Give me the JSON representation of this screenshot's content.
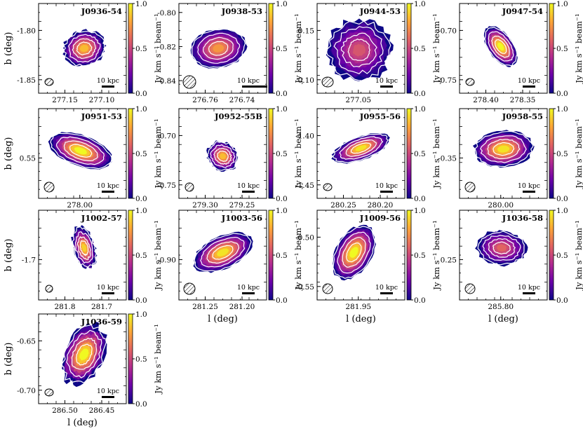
{
  "figure": {
    "y_axis_label": "b (deg)",
    "x_axis_label": "l (deg)",
    "colorbar_label": "Jy km s⁻¹ beam⁻¹",
    "scalebar_label": "10 kpc",
    "colormap": [
      "#0d0887",
      "#6a00a8",
      "#b12a90",
      "#e16462",
      "#fca636",
      "#f0f921"
    ],
    "contour_color": "#ffffff"
  },
  "chart_data": [
    {
      "type": "heatmap",
      "title": "J0936-54",
      "xticks": [
        "277.15",
        "277.10"
      ],
      "yticks": [
        "-1.80",
        "-1.85"
      ],
      "colorbar_ticks": [
        "1.0",
        "0.5",
        "0.0"
      ],
      "clim": [
        0,
        1
      ],
      "peak": 0.85
    },
    {
      "type": "heatmap",
      "title": "J0938-53",
      "xticks": [
        "276.76",
        "276.74"
      ],
      "yticks": [
        "-0.80",
        "-0.82",
        "-0.84"
      ],
      "colorbar_ticks": [
        "1.0",
        "0.5",
        "0.0"
      ],
      "clim": [
        0,
        1
      ],
      "peak": 0.75
    },
    {
      "type": "heatmap",
      "title": "J0944-53",
      "xticks": [
        "277.05"
      ],
      "yticks": [
        "0.15",
        "0.10"
      ],
      "colorbar_ticks": [
        "1.0",
        "0.5",
        "0.0"
      ],
      "clim": [
        0,
        1
      ],
      "peak": 0.55
    },
    {
      "type": "heatmap",
      "title": "J0947-54",
      "xticks": [
        "278.40",
        "278.35"
      ],
      "yticks": [
        "-0.70",
        "-0.75"
      ],
      "colorbar_ticks": [
        "1.0",
        "0.5",
        "0.0"
      ],
      "clim": [
        0,
        1
      ],
      "peak": 1.0
    },
    {
      "type": "heatmap",
      "title": "J0951-53",
      "xticks": [
        "278.00"
      ],
      "yticks": [
        "0.55"
      ],
      "colorbar_ticks": [
        "1.0",
        "0.5",
        "0.0"
      ],
      "clim": [
        0,
        1
      ],
      "peak": 1.0
    },
    {
      "type": "heatmap",
      "title": "J0952-55B",
      "xticks": [
        "279.30",
        "279.25"
      ],
      "yticks": [
        "-0.70",
        "-0.75"
      ],
      "colorbar_ticks": [
        "1.0",
        "0.5",
        "0.0"
      ],
      "clim": [
        0,
        1
      ],
      "peak": 0.85
    },
    {
      "type": "heatmap",
      "title": "J0955-56",
      "xticks": [
        "280.25",
        "280.20"
      ],
      "yticks": [
        "-1.40",
        "-1.45"
      ],
      "colorbar_ticks": [
        "1.0",
        "0.5",
        "0.0"
      ],
      "clim": [
        0,
        1
      ],
      "peak": 0.95
    },
    {
      "type": "heatmap",
      "title": "J0958-55",
      "xticks": [
        "280.00"
      ],
      "yticks": [
        "-0.35"
      ],
      "colorbar_ticks": [
        "1.0",
        "0.5",
        "0.0"
      ],
      "clim": [
        0,
        1
      ],
      "peak": 0.95
    },
    {
      "type": "heatmap",
      "title": "J1002-57",
      "xticks": [
        "281.8",
        "281.7"
      ],
      "yticks": [
        "-1.7"
      ],
      "colorbar_ticks": [
        "1.0",
        "0.5",
        "0.0"
      ],
      "clim": [
        0,
        1
      ],
      "peak": 0.9
    },
    {
      "type": "heatmap",
      "title": "J1003-56",
      "xticks": [
        "281.25",
        "281.20"
      ],
      "yticks": [
        "-0.90"
      ],
      "colorbar_ticks": [
        "1.0",
        "0.5",
        "0.0"
      ],
      "clim": [
        0,
        1
      ],
      "peak": 0.95
    },
    {
      "type": "heatmap",
      "title": "J1009-56",
      "xticks": [
        "281.95"
      ],
      "yticks": [
        "-0.50",
        "-0.55"
      ],
      "colorbar_ticks": [
        "1.0",
        "0.5",
        "0.0"
      ],
      "clim": [
        0,
        1
      ],
      "peak": 1.0
    },
    {
      "type": "heatmap",
      "title": "J1036-58",
      "xticks": [
        "285.80"
      ],
      "yticks": [
        "0.25"
      ],
      "colorbar_ticks": [
        "1.0",
        "0.5",
        "0.0"
      ],
      "clim": [
        0,
        1
      ],
      "peak": 0.6
    },
    {
      "type": "heatmap",
      "title": "J1036-59",
      "xticks": [
        "286.50",
        "286.45"
      ],
      "yticks": [
        "-0.65",
        "-0.70"
      ],
      "colorbar_ticks": [
        "1.0",
        "0.5",
        "0.0"
      ],
      "clim": [
        0,
        1
      ],
      "peak": 1.0
    }
  ]
}
